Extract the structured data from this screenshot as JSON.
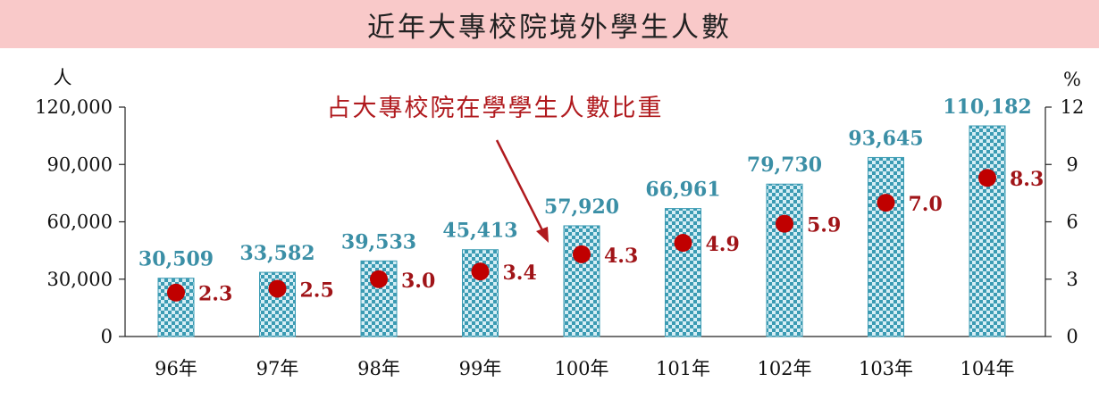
{
  "chart_data": {
    "type": "bar",
    "title": "近年大專校院境外學生人數",
    "categories": [
      "96年",
      "97年",
      "98年",
      "99年",
      "100年",
      "101年",
      "102年",
      "103年",
      "104年"
    ],
    "series": [
      {
        "type": "bar",
        "axis": "left",
        "values": [
          30509,
          33582,
          39533,
          45413,
          57920,
          66961,
          79730,
          93645,
          110182
        ],
        "labels": [
          "30,509",
          "33,582",
          "39,533",
          "45,413",
          "57,920",
          "66,961",
          "79,730",
          "93,645",
          "110,182"
        ]
      },
      {
        "type": "scatter",
        "axis": "right",
        "values": [
          2.3,
          2.5,
          3.0,
          3.4,
          4.3,
          4.9,
          5.9,
          7.0,
          8.3
        ],
        "labels": [
          "2.3",
          "2.5",
          "3.0",
          "3.4",
          "4.3",
          "4.9",
          "5.9",
          "7.0",
          "8.3"
        ]
      }
    ],
    "y_left": {
      "unit": "人",
      "ylim": [
        0,
        120000
      ],
      "ticks": [
        "0",
        "30,000",
        "60,000",
        "90,000",
        "120,000"
      ]
    },
    "y_right": {
      "unit": "%",
      "ylim": [
        0,
        12
      ],
      "ticks": [
        "0",
        "3",
        "6",
        "9",
        "12"
      ]
    },
    "annotation": "占大專校院在學學生人數比重",
    "colors": {
      "bar": "#3b9bb3",
      "bar_light": "#d6eef5",
      "marker": "#c00000",
      "pct_text": "#a01418",
      "bar_text": "#3b8fa6"
    },
    "grid": false,
    "legend": "none"
  }
}
